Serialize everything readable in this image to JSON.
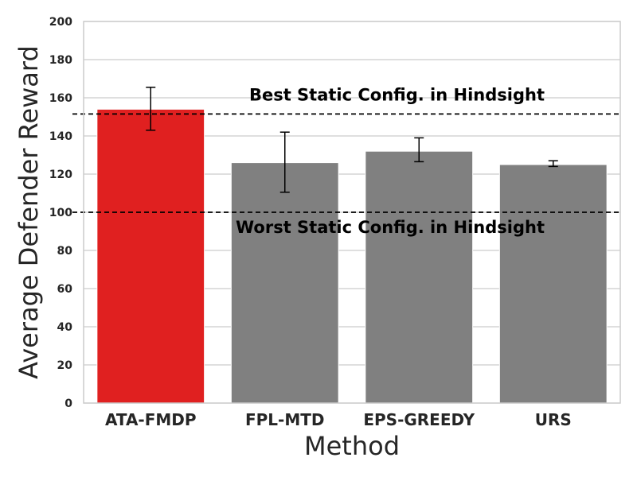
{
  "chart_data": {
    "type": "bar",
    "xlabel": "Method",
    "ylabel": "Average Defender Reward",
    "ylim": [
      0,
      200
    ],
    "yticks": [
      0,
      20,
      40,
      60,
      80,
      100,
      120,
      140,
      160,
      180,
      200
    ],
    "grid": "horizontal",
    "categories": [
      "ATA-FMDP",
      "FPL-MTD",
      "EPS-GREEDY",
      "URS"
    ],
    "values": [
      154,
      126,
      132,
      125
    ],
    "error_low": [
      143,
      110.5,
      126.5,
      124
    ],
    "error_high": [
      165.5,
      142,
      139,
      127
    ],
    "colors": [
      "#e02020",
      "#808080",
      "#808080",
      "#808080"
    ],
    "reference_lines": [
      {
        "label": "Best Static Config. in Hindsight",
        "value": 151.5,
        "style": "dashed"
      },
      {
        "label": "Worst Static Config. in Hindsight",
        "value": 100,
        "style": "dashed"
      }
    ]
  }
}
